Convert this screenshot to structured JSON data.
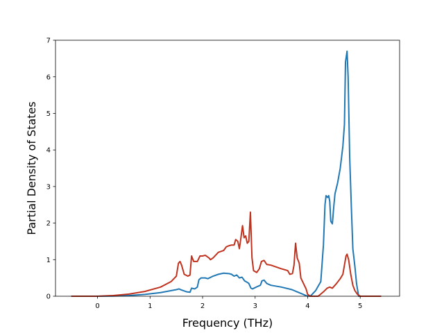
{
  "chart_data": {
    "type": "line",
    "title": "",
    "xlabel": "Frequency (THz)",
    "ylabel": "Partial Density of States",
    "xlim": [
      -0.8,
      5.75
    ],
    "ylim": [
      0,
      7
    ],
    "xticks": [
      0,
      1,
      2,
      3,
      4,
      5
    ],
    "yticks": [
      0,
      1,
      2,
      3,
      4,
      5,
      6,
      7
    ],
    "grid": false,
    "legend": "none",
    "series": [
      {
        "color": "#1f77b4",
        "points": [
          [
            -0.5,
            0
          ],
          [
            0.0,
            0
          ],
          [
            0.3,
            0.005
          ],
          [
            0.6,
            0.02
          ],
          [
            0.9,
            0.05
          ],
          [
            1.2,
            0.1
          ],
          [
            1.5,
            0.18
          ],
          [
            1.55,
            0.2
          ],
          [
            1.6,
            0.17
          ],
          [
            1.7,
            0.12
          ],
          [
            1.76,
            0.11
          ],
          [
            1.79,
            0.22
          ],
          [
            1.85,
            0.2
          ],
          [
            1.9,
            0.25
          ],
          [
            1.93,
            0.45
          ],
          [
            1.97,
            0.5
          ],
          [
            2.05,
            0.5
          ],
          [
            2.1,
            0.48
          ],
          [
            2.2,
            0.55
          ],
          [
            2.3,
            0.6
          ],
          [
            2.4,
            0.63
          ],
          [
            2.5,
            0.62
          ],
          [
            2.55,
            0.6
          ],
          [
            2.6,
            0.55
          ],
          [
            2.65,
            0.58
          ],
          [
            2.7,
            0.5
          ],
          [
            2.75,
            0.52
          ],
          [
            2.8,
            0.42
          ],
          [
            2.85,
            0.38
          ],
          [
            2.88,
            0.35
          ],
          [
            2.92,
            0.22
          ],
          [
            2.95,
            0.2
          ],
          [
            3.05,
            0.27
          ],
          [
            3.1,
            0.3
          ],
          [
            3.13,
            0.42
          ],
          [
            3.17,
            0.44
          ],
          [
            3.22,
            0.35
          ],
          [
            3.3,
            0.3
          ],
          [
            3.5,
            0.25
          ],
          [
            3.7,
            0.18
          ],
          [
            3.8,
            0.12
          ],
          [
            3.9,
            0.06
          ],
          [
            3.98,
            0.01
          ],
          [
            4.05,
            0.0
          ],
          [
            4.15,
            0.15
          ],
          [
            4.25,
            0.4
          ],
          [
            4.3,
            1.4
          ],
          [
            4.33,
            2.5
          ],
          [
            4.35,
            2.75
          ],
          [
            4.38,
            2.7
          ],
          [
            4.4,
            2.75
          ],
          [
            4.42,
            2.6
          ],
          [
            4.44,
            2.05
          ],
          [
            4.47,
            1.98
          ],
          [
            4.5,
            2.5
          ],
          [
            4.52,
            2.8
          ],
          [
            4.57,
            3.1
          ],
          [
            4.62,
            3.5
          ],
          [
            4.67,
            4.1
          ],
          [
            4.7,
            4.7
          ],
          [
            4.72,
            6.4
          ],
          [
            4.75,
            6.7
          ],
          [
            4.77,
            6.0
          ],
          [
            4.8,
            3.8
          ],
          [
            4.83,
            2.5
          ],
          [
            4.86,
            1.3
          ],
          [
            4.9,
            0.8
          ],
          [
            4.93,
            0.35
          ],
          [
            4.97,
            0.0
          ],
          [
            5.4,
            0.0
          ]
        ]
      },
      {
        "color": "#c0321e",
        "points": [
          [
            -0.5,
            0
          ],
          [
            0.0,
            0
          ],
          [
            0.3,
            0.02
          ],
          [
            0.6,
            0.06
          ],
          [
            0.9,
            0.13
          ],
          [
            1.2,
            0.25
          ],
          [
            1.4,
            0.4
          ],
          [
            1.5,
            0.55
          ],
          [
            1.54,
            0.9
          ],
          [
            1.57,
            0.95
          ],
          [
            1.6,
            0.85
          ],
          [
            1.65,
            0.6
          ],
          [
            1.72,
            0.55
          ],
          [
            1.76,
            0.58
          ],
          [
            1.79,
            1.1
          ],
          [
            1.83,
            0.95
          ],
          [
            1.9,
            0.95
          ],
          [
            1.95,
            1.1
          ],
          [
            2.0,
            1.1
          ],
          [
            2.05,
            1.12
          ],
          [
            2.12,
            1.05
          ],
          [
            2.15,
            1.0
          ],
          [
            2.2,
            1.05
          ],
          [
            2.3,
            1.2
          ],
          [
            2.4,
            1.25
          ],
          [
            2.45,
            1.35
          ],
          [
            2.5,
            1.38
          ],
          [
            2.55,
            1.4
          ],
          [
            2.6,
            1.4
          ],
          [
            2.63,
            1.55
          ],
          [
            2.67,
            1.5
          ],
          [
            2.7,
            1.3
          ],
          [
            2.73,
            1.6
          ],
          [
            2.76,
            1.93
          ],
          [
            2.79,
            1.6
          ],
          [
            2.82,
            1.65
          ],
          [
            2.85,
            1.45
          ],
          [
            2.88,
            1.5
          ],
          [
            2.91,
            2.3
          ],
          [
            2.94,
            1.05
          ],
          [
            2.97,
            0.7
          ],
          [
            3.03,
            0.65
          ],
          [
            3.08,
            0.75
          ],
          [
            3.12,
            0.95
          ],
          [
            3.17,
            0.98
          ],
          [
            3.22,
            0.87
          ],
          [
            3.3,
            0.85
          ],
          [
            3.4,
            0.8
          ],
          [
            3.5,
            0.75
          ],
          [
            3.55,
            0.73
          ],
          [
            3.62,
            0.7
          ],
          [
            3.66,
            0.6
          ],
          [
            3.71,
            0.62
          ],
          [
            3.74,
            0.85
          ],
          [
            3.77,
            1.45
          ],
          [
            3.8,
            1.05
          ],
          [
            3.84,
            0.9
          ],
          [
            3.87,
            0.5
          ],
          [
            3.92,
            0.35
          ],
          [
            3.97,
            0.2
          ],
          [
            4.0,
            0.05
          ],
          [
            4.05,
            0.0
          ],
          [
            4.2,
            0.0
          ],
          [
            4.3,
            0.12
          ],
          [
            4.37,
            0.22
          ],
          [
            4.42,
            0.25
          ],
          [
            4.47,
            0.22
          ],
          [
            4.55,
            0.35
          ],
          [
            4.62,
            0.48
          ],
          [
            4.67,
            0.6
          ],
          [
            4.7,
            0.85
          ],
          [
            4.73,
            1.1
          ],
          [
            4.75,
            1.15
          ],
          [
            4.78,
            1.0
          ],
          [
            4.82,
            0.6
          ],
          [
            4.86,
            0.3
          ],
          [
            4.9,
            0.15
          ],
          [
            4.95,
            0.05
          ],
          [
            5.0,
            0.0
          ],
          [
            5.4,
            0.0
          ]
        ]
      }
    ]
  }
}
